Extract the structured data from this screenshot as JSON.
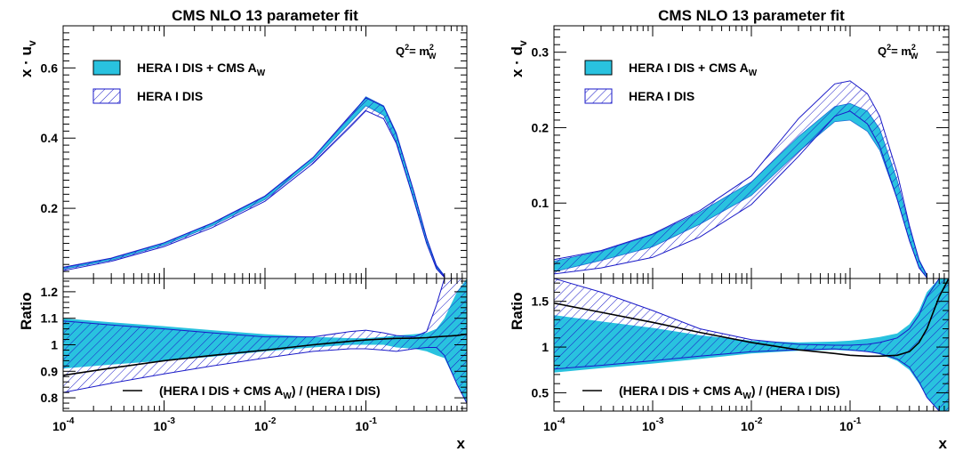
{
  "chart_data": [
    {
      "type": "area",
      "panel": "upper",
      "title": "CMS NLO 13 parameter fit",
      "ylabel": "x · u",
      "ylabel_sub": "v",
      "annotation": "Q²= m²_W",
      "annotation_parts": {
        "q": "Q",
        "q_sup": "2",
        "eq": "= m",
        "w_sup": "2",
        "w_sub": "W"
      },
      "xscale": "log",
      "xlim": [
        0.0001,
        1
      ],
      "ylim": [
        0.0,
        0.72
      ],
      "yticks": [
        "0.2",
        "0.4",
        "0.6"
      ],
      "legend": [
        {
          "label": "HERA I DIS + CMS A",
          "sub": "W",
          "style": "fill"
        },
        {
          "label": "HERA I DIS",
          "style": "hatch"
        }
      ],
      "x": [
        0.0001,
        0.0003,
        0.001,
        0.003,
        0.01,
        0.03,
        0.07,
        0.1,
        0.15,
        0.2,
        0.3,
        0.4,
        0.5,
        0.6
      ],
      "series": [
        {
          "name": "HERA I DIS + CMS A_W",
          "style": "fill",
          "low": [
            0.026,
            0.052,
            0.095,
            0.15,
            0.225,
            0.335,
            0.445,
            0.492,
            0.465,
            0.39,
            0.22,
            0.1,
            0.03,
            0.004
          ],
          "high": [
            0.03,
            0.057,
            0.101,
            0.157,
            0.233,
            0.345,
            0.46,
            0.518,
            0.492,
            0.415,
            0.245,
            0.115,
            0.038,
            0.008
          ]
        },
        {
          "name": "HERA I DIS",
          "style": "hatch",
          "low": [
            0.022,
            0.049,
            0.091,
            0.145,
            0.22,
            0.328,
            0.432,
            0.478,
            0.455,
            0.385,
            0.222,
            0.1,
            0.028,
            0.003
          ],
          "high": [
            0.032,
            0.058,
            0.102,
            0.158,
            0.235,
            0.345,
            0.465,
            0.515,
            0.49,
            0.412,
            0.245,
            0.115,
            0.036,
            0.006
          ]
        }
      ]
    },
    {
      "type": "area",
      "panel": "ratio",
      "ylabel": "Ratio",
      "xlabel": "x",
      "xscale": "log",
      "xlim": [
        0.0001,
        1
      ],
      "ylim": [
        0.75,
        1.25
      ],
      "yticks": [
        "0.8",
        "0.9",
        "1",
        "1.1",
        "1.2"
      ],
      "xticks": [
        {
          "base": "10",
          "exp": "-4"
        },
        {
          "base": "10",
          "exp": "-3"
        },
        {
          "base": "10",
          "exp": "-2"
        },
        {
          "base": "10",
          "exp": "-1"
        }
      ],
      "legend_line": {
        "label_pre": "(HERA I DIS + CMS A",
        "sub": "W",
        "label_post": ") / (HERA I DIS)"
      },
      "x": [
        0.0001,
        0.0003,
        0.001,
        0.003,
        0.01,
        0.03,
        0.07,
        0.1,
        0.15,
        0.2,
        0.3,
        0.4,
        0.5,
        0.6,
        0.8,
        1.0
      ],
      "series": [
        {
          "name": "HERA I DIS + CMS A_W",
          "style": "fill",
          "low": [
            0.91,
            0.925,
            0.94,
            0.955,
            0.975,
            0.99,
            1.0,
            1.0,
            1.0,
            0.99,
            0.985,
            0.975,
            0.96,
            0.95,
            0.85,
            0.78
          ],
          "high": [
            1.1,
            1.085,
            1.07,
            1.055,
            1.04,
            1.03,
            1.025,
            1.025,
            1.03,
            1.035,
            1.04,
            1.045,
            1.06,
            1.1,
            1.2,
            1.25
          ]
        },
        {
          "name": "HERA I DIS",
          "style": "hatch",
          "low": [
            0.82,
            0.855,
            0.89,
            0.92,
            0.95,
            0.975,
            0.985,
            0.985,
            0.98,
            0.975,
            0.985,
            0.99,
            0.99,
            0.96,
            0.85,
            0.78
          ],
          "high": [
            1.09,
            1.075,
            1.06,
            1.045,
            1.03,
            1.03,
            1.05,
            1.055,
            1.045,
            1.035,
            1.03,
            1.05,
            1.15,
            1.25,
            1.25,
            1.25
          ]
        },
        {
          "name": "(HERA I DIS + CMS A_W) / (HERA I DIS)",
          "style": "line",
          "values": [
            0.885,
            0.912,
            0.94,
            0.96,
            0.98,
            1.0,
            1.013,
            1.018,
            1.022,
            1.024,
            1.025,
            1.027,
            1.03,
            1.032,
            1.035,
            1.04
          ]
        }
      ]
    },
    {
      "type": "area",
      "panel": "upper",
      "title": "CMS NLO 13 parameter fit",
      "ylabel": "x · d",
      "ylabel_sub": "v",
      "annotation": "Q²= m²_W",
      "annotation_parts": {
        "q": "Q",
        "q_sup": "2",
        "eq": "= m",
        "w_sup": "2",
        "w_sub": "W"
      },
      "xscale": "log",
      "xlim": [
        0.0001,
        1
      ],
      "ylim": [
        0.0,
        0.335
      ],
      "yticks": [
        "0.1",
        "0.2",
        "0.3"
      ],
      "legend": [
        {
          "label": "HERA I DIS + CMS A",
          "sub": "W",
          "style": "fill"
        },
        {
          "label": "HERA I DIS",
          "style": "hatch"
        }
      ],
      "x": [
        0.0001,
        0.0003,
        0.001,
        0.003,
        0.01,
        0.03,
        0.07,
        0.1,
        0.15,
        0.2,
        0.3,
        0.4,
        0.5,
        0.6
      ],
      "series": [
        {
          "name": "HERA I DIS + CMS A_W",
          "style": "fill",
          "low": [
            0.009,
            0.024,
            0.042,
            0.072,
            0.11,
            0.168,
            0.208,
            0.21,
            0.195,
            0.17,
            0.105,
            0.05,
            0.015,
            0.001
          ],
          "high": [
            0.023,
            0.036,
            0.058,
            0.088,
            0.128,
            0.188,
            0.228,
            0.232,
            0.222,
            0.198,
            0.13,
            0.068,
            0.025,
            0.005
          ]
        },
        {
          "name": "HERA I DIS",
          "style": "hatch",
          "low": [
            0.006,
            0.014,
            0.028,
            0.055,
            0.098,
            0.162,
            0.215,
            0.222,
            0.205,
            0.175,
            0.105,
            0.05,
            0.014,
            0.001
          ],
          "high": [
            0.025,
            0.037,
            0.059,
            0.09,
            0.136,
            0.212,
            0.258,
            0.262,
            0.245,
            0.215,
            0.14,
            0.07,
            0.024,
            0.004
          ]
        }
      ]
    },
    {
      "type": "area",
      "panel": "ratio",
      "ylabel": "Ratio",
      "xlabel": "x",
      "xscale": "log",
      "xlim": [
        0.0001,
        1
      ],
      "ylim": [
        0.3,
        1.75
      ],
      "yticks": [
        "0.5",
        "1",
        "1.5"
      ],
      "xticks": [
        {
          "base": "10",
          "exp": "-4"
        },
        {
          "base": "10",
          "exp": "-3"
        },
        {
          "base": "10",
          "exp": "-2"
        },
        {
          "base": "10",
          "exp": "-1"
        }
      ],
      "legend_line": {
        "label_pre": "(HERA I DIS + CMS A",
        "sub": "W",
        "label_post": ") / (HERA I DIS)"
      },
      "x": [
        0.0001,
        0.0003,
        0.001,
        0.003,
        0.01,
        0.03,
        0.07,
        0.1,
        0.15,
        0.2,
        0.3,
        0.4,
        0.5,
        0.6,
        0.8,
        1.0
      ],
      "series": [
        {
          "name": "HERA I DIS + CMS A_W",
          "style": "fill",
          "low": [
            0.72,
            0.77,
            0.82,
            0.87,
            0.93,
            0.96,
            0.97,
            0.96,
            0.95,
            0.92,
            0.85,
            0.75,
            0.6,
            0.45,
            0.3,
            0.3
          ],
          "high": [
            1.35,
            1.28,
            1.21,
            1.13,
            1.07,
            1.05,
            1.06,
            1.07,
            1.09,
            1.11,
            1.15,
            1.25,
            1.4,
            1.6,
            1.75,
            1.75
          ]
        },
        {
          "name": "HERA I DIS",
          "style": "hatch",
          "low": [
            0.76,
            0.8,
            0.85,
            0.9,
            0.95,
            0.97,
            0.98,
            0.97,
            0.95,
            0.93,
            0.87,
            0.78,
            0.62,
            0.45,
            0.3,
            0.3
          ],
          "high": [
            1.75,
            1.6,
            1.4,
            1.2,
            1.08,
            1.03,
            1.02,
            1.02,
            1.03,
            1.05,
            1.1,
            1.2,
            1.35,
            1.55,
            1.75,
            1.75
          ]
        },
        {
          "name": "(HERA I DIS + CMS A_W) / (HERA I DIS)",
          "style": "line",
          "values": [
            1.48,
            1.38,
            1.27,
            1.16,
            1.05,
            0.97,
            0.93,
            0.91,
            0.9,
            0.9,
            0.91,
            0.95,
            1.05,
            1.2,
            1.55,
            1.75
          ]
        }
      ]
    }
  ],
  "colors": {
    "fill": "#29c2df",
    "hatch": "#1a1ac8",
    "line": "#000000",
    "fill_edge": "#1f6fd6"
  }
}
